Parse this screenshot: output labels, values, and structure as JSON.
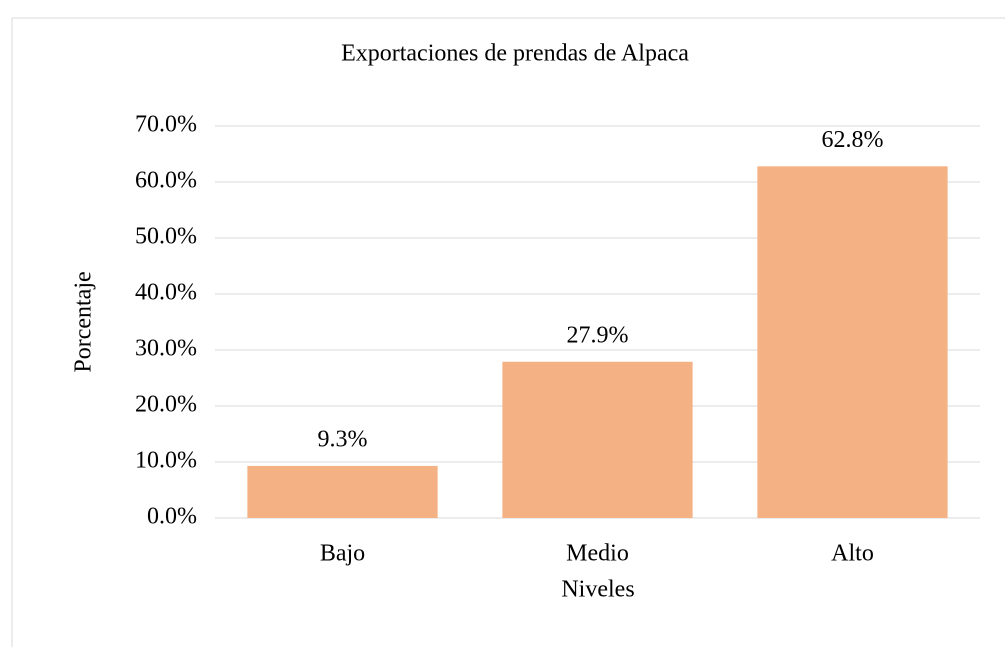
{
  "chart_data": {
    "type": "bar",
    "title": "Exportaciones de prendas de Alpaca",
    "x_label": "Niveles",
    "y_label": "Porcentaje",
    "categories": [
      "Bajo",
      "Medio",
      "Alto"
    ],
    "values": [
      9.3,
      27.9,
      62.8
    ],
    "value_labels": [
      "9.3%",
      "27.9%",
      "62.8%"
    ],
    "color": "#f4b183",
    "ylim": [
      0,
      70
    ],
    "yticks": [
      {
        "value": 0,
        "label": "0.0%"
      },
      {
        "value": 10,
        "label": "10.0%"
      },
      {
        "value": 20,
        "label": "20.0%"
      },
      {
        "value": 30,
        "label": "30.0%"
      },
      {
        "value": 40,
        "label": "40.0%"
      },
      {
        "value": 50,
        "label": "50.0%"
      },
      {
        "value": 60,
        "label": "60.0%"
      },
      {
        "value": 70,
        "label": "70.0%"
      }
    ],
    "grid": true
  }
}
